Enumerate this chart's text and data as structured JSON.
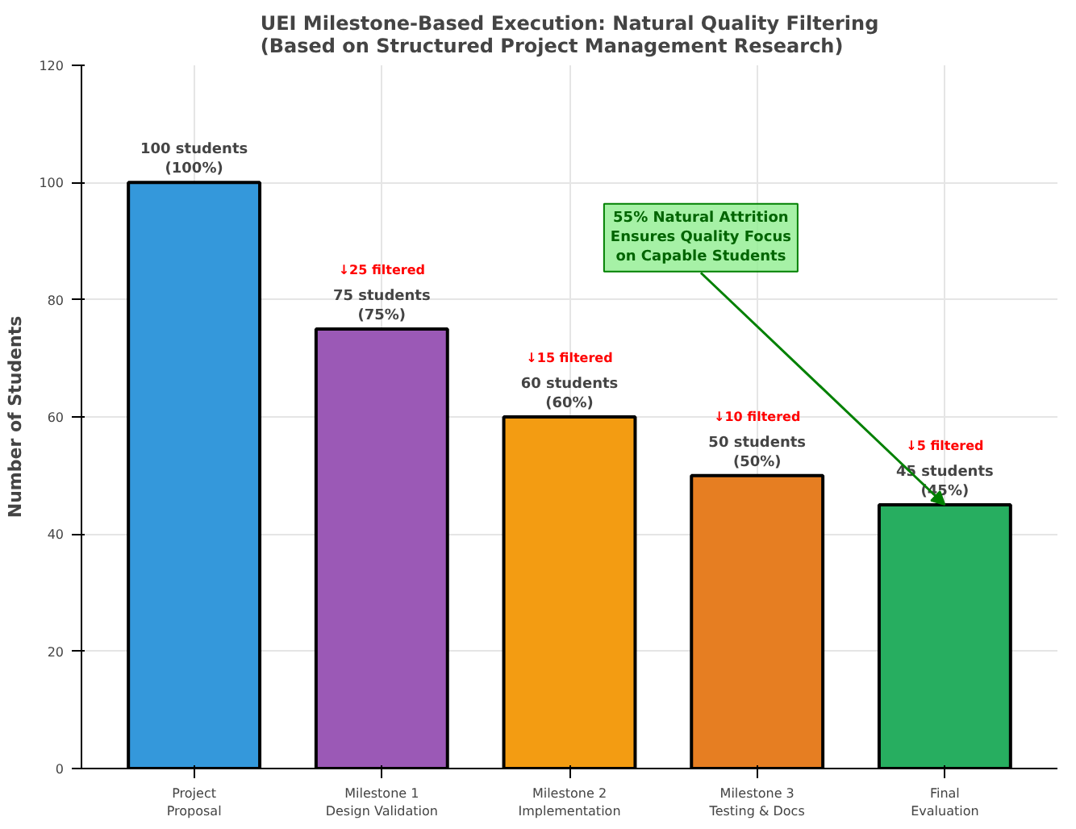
{
  "chart_data": {
    "type": "bar",
    "title": "UEI Milestone-Based Execution: Natural Quality Filtering\n(Based on Structured Project Management Research)",
    "ylabel": "Number of Students",
    "categories": [
      "Project\nProposal",
      "Milestone 1\nDesign Validation",
      "Milestone 2\nImplementation",
      "Milestone 3\nTesting & Docs",
      "Final\nEvaluation"
    ],
    "values": [
      100,
      75,
      60,
      50,
      45
    ],
    "colors": [
      "#3498db",
      "#9b59b6",
      "#f39c12",
      "#e67e22",
      "#27ae60"
    ],
    "value_labels": [
      "100 students\n(100%)",
      "75 students\n(75%)",
      "60 students\n(60%)",
      "50 students\n(50%)",
      "45 students\n(45%)"
    ],
    "annotations": [
      "↓25 filtered",
      "↓15 filtered",
      "↓10 filtered",
      "↓5 filtered",
      {
        "text": "55% Natural Attrition\nEnsures Quality Focus\non Capable Students",
        "x": "Final\nEvaluation",
        "y": 45
      }
    ],
    "ylim": [
      0,
      120
    ],
    "yticks": [
      0,
      20,
      40,
      60,
      80,
      100,
      120
    ],
    "grid": true
  }
}
